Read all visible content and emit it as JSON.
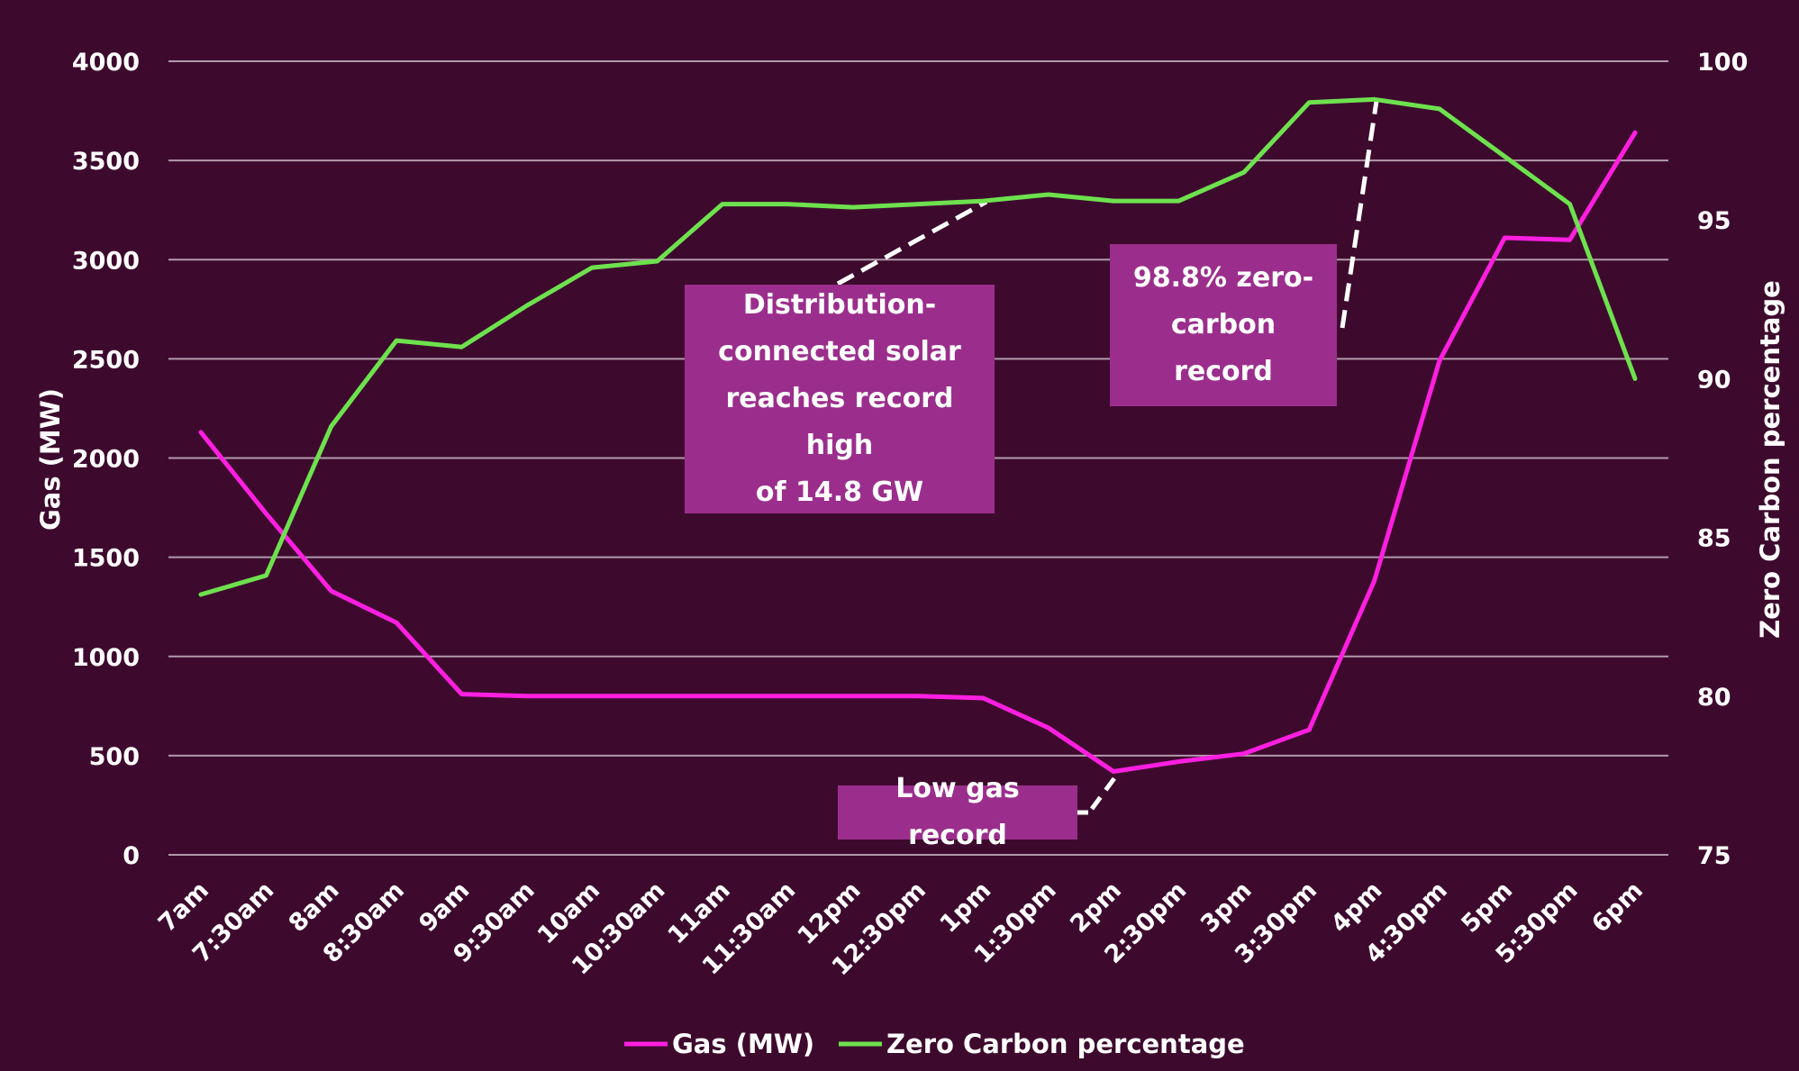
{
  "chart_data": {
    "type": "line",
    "title": "",
    "xlabel": "",
    "x": [
      "7am",
      "7:30am",
      "8am",
      "8:30am",
      "9am",
      "9:30am",
      "10am",
      "10:30am",
      "11am",
      "11:30am",
      "12pm",
      "12:30pm",
      "1pm",
      "1:30pm",
      "2pm",
      "2:30pm",
      "3pm",
      "3:30pm",
      "4pm",
      "4:30pm",
      "5pm",
      "5:30pm",
      "6pm"
    ],
    "y_left": {
      "label": "Gas (MW)",
      "min": 0,
      "max": 4000,
      "ticks": [
        0,
        500,
        1000,
        1500,
        2000,
        2500,
        3000,
        3500,
        4000
      ]
    },
    "y_right": {
      "label": "Zero Carbon percentage",
      "min": 75,
      "max": 100,
      "ticks": [
        75,
        80,
        85,
        90,
        95,
        100
      ]
    },
    "series": [
      {
        "name": "Gas (MW)",
        "axis": "left",
        "color": "#ff1fe0",
        "values": [
          2130,
          1720,
          1330,
          1170,
          810,
          800,
          800,
          800,
          800,
          800,
          800,
          800,
          790,
          640,
          420,
          470,
          510,
          630,
          1380,
          2490,
          3110,
          3100,
          3640
        ]
      },
      {
        "name": "Zero Carbon percentage",
        "axis": "right",
        "color": "#6ee14e",
        "values": [
          83.2,
          83.8,
          88.5,
          91.2,
          91.0,
          92.3,
          93.5,
          93.7,
          95.5,
          95.5,
          95.4,
          95.5,
          95.6,
          95.8,
          95.6,
          95.6,
          96.5,
          98.7,
          98.8,
          98.5,
          97.0,
          95.5,
          90.0
        ]
      }
    ],
    "annotations": [
      {
        "text": "Distribution-connected solar reaches record high of 14.8 GW",
        "lines": [
          "Distribution-",
          "connected solar",
          "reaches record high",
          "of 14.8 GW"
        ]
      },
      {
        "text": "98.8% zero-carbon record",
        "lines": [
          "98.8% zero-",
          "carbon record"
        ]
      },
      {
        "text": "Low gas record",
        "lines": [
          "Low gas record"
        ]
      }
    ],
    "legend": {
      "position": "bottom-center"
    },
    "grid": true
  }
}
